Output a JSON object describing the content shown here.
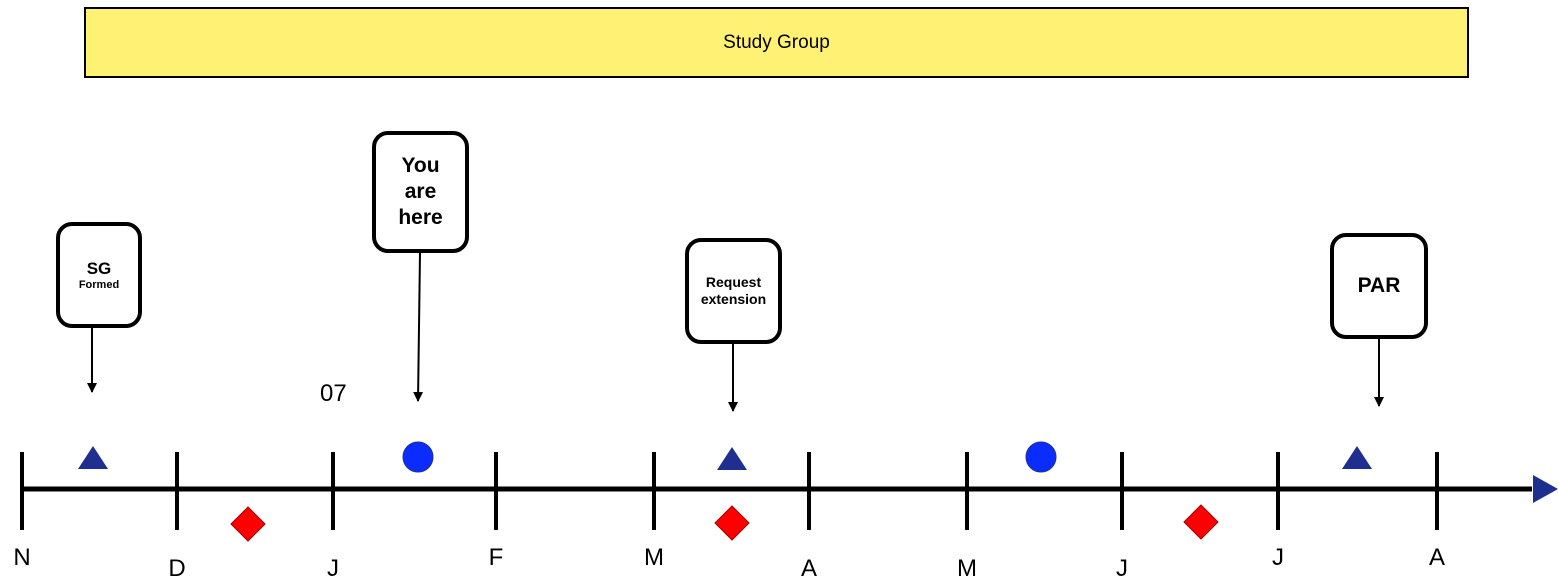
{
  "banner": {
    "label": "Study Group"
  },
  "callouts": {
    "sg": {
      "title": "SG",
      "subtitle": "Formed"
    },
    "here": {
      "line1": "You",
      "line2": "are",
      "line3": "here"
    },
    "extension": {
      "line1": "Request",
      "line2": "extension"
    },
    "par": {
      "title": "PAR"
    }
  },
  "timeline": {
    "year_label": "07",
    "months": [
      "N",
      "D",
      "J",
      "F",
      "M",
      "A",
      "M",
      "J",
      "J",
      "A"
    ]
  },
  "markers": {
    "triangle_color": "#1f2f8f",
    "circle_color": "#0b2cff",
    "diamond_color": "#ff0000",
    "axis_arrow_color": "#1f2f8f"
  }
}
